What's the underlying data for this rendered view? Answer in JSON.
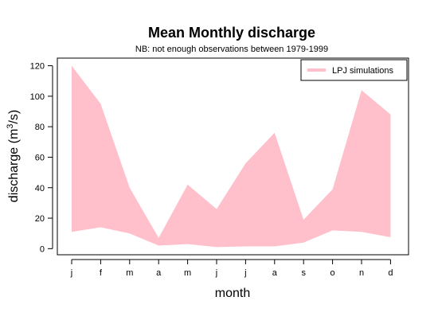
{
  "chart_data": {
    "type": "area",
    "title": "Mean Monthly discharge",
    "subtitle": "NB: not enough observations between 1979-1999",
    "xlabel": "month",
    "ylabel_main": "discharge (m",
    "ylabel_sup": "3",
    "ylabel_tail": "/s)",
    "categories": [
      "j",
      "f",
      "m",
      "a",
      "m",
      "j",
      "j",
      "a",
      "s",
      "o",
      "n",
      "d"
    ],
    "yticks": [
      0,
      20,
      40,
      60,
      80,
      100,
      120
    ],
    "ylim": [
      -4,
      125
    ],
    "series": [
      {
        "name": "LPJ simulations",
        "color": "#ffc0cb",
        "upper": [
          120,
          95,
          40,
          7,
          42,
          26,
          56,
          76,
          19,
          39,
          104,
          88
        ],
        "lower": [
          11,
          14,
          10,
          2,
          3,
          1,
          1.5,
          1.5,
          4,
          12,
          11,
          7.5
        ]
      }
    ],
    "legend_position": "top-right",
    "grid": false
  }
}
